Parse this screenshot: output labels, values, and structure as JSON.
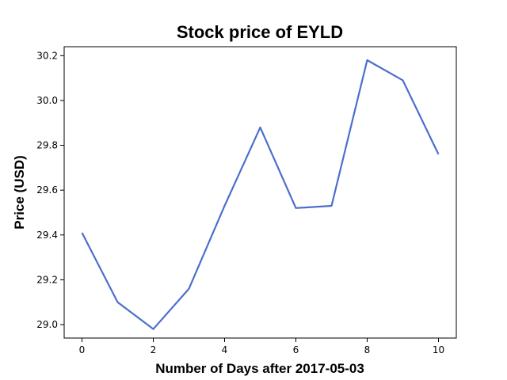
{
  "chart_data": {
    "type": "line",
    "title": "Stock price of EYLD",
    "xlabel": "Number of Days after 2017-05-03",
    "ylabel": "Price (USD)",
    "x": [
      0,
      1,
      2,
      3,
      4,
      5,
      6,
      7,
      8,
      9,
      10
    ],
    "series": [
      {
        "values": [
          29.41,
          29.1,
          28.98,
          29.16,
          29.53,
          29.88,
          29.52,
          29.53,
          30.18,
          30.09,
          29.76
        ],
        "color": "#4c6fcc"
      }
    ],
    "xlim": [
      -0.5,
      10.5
    ],
    "ylim": [
      28.94,
      30.24
    ],
    "xticks": [
      "0",
      "2",
      "4",
      "6",
      "8",
      "10"
    ],
    "yticks": [
      "29.0",
      "29.2",
      "29.4",
      "29.6",
      "29.8",
      "30.0",
      "30.2"
    ],
    "grid": false,
    "legend": "none"
  }
}
